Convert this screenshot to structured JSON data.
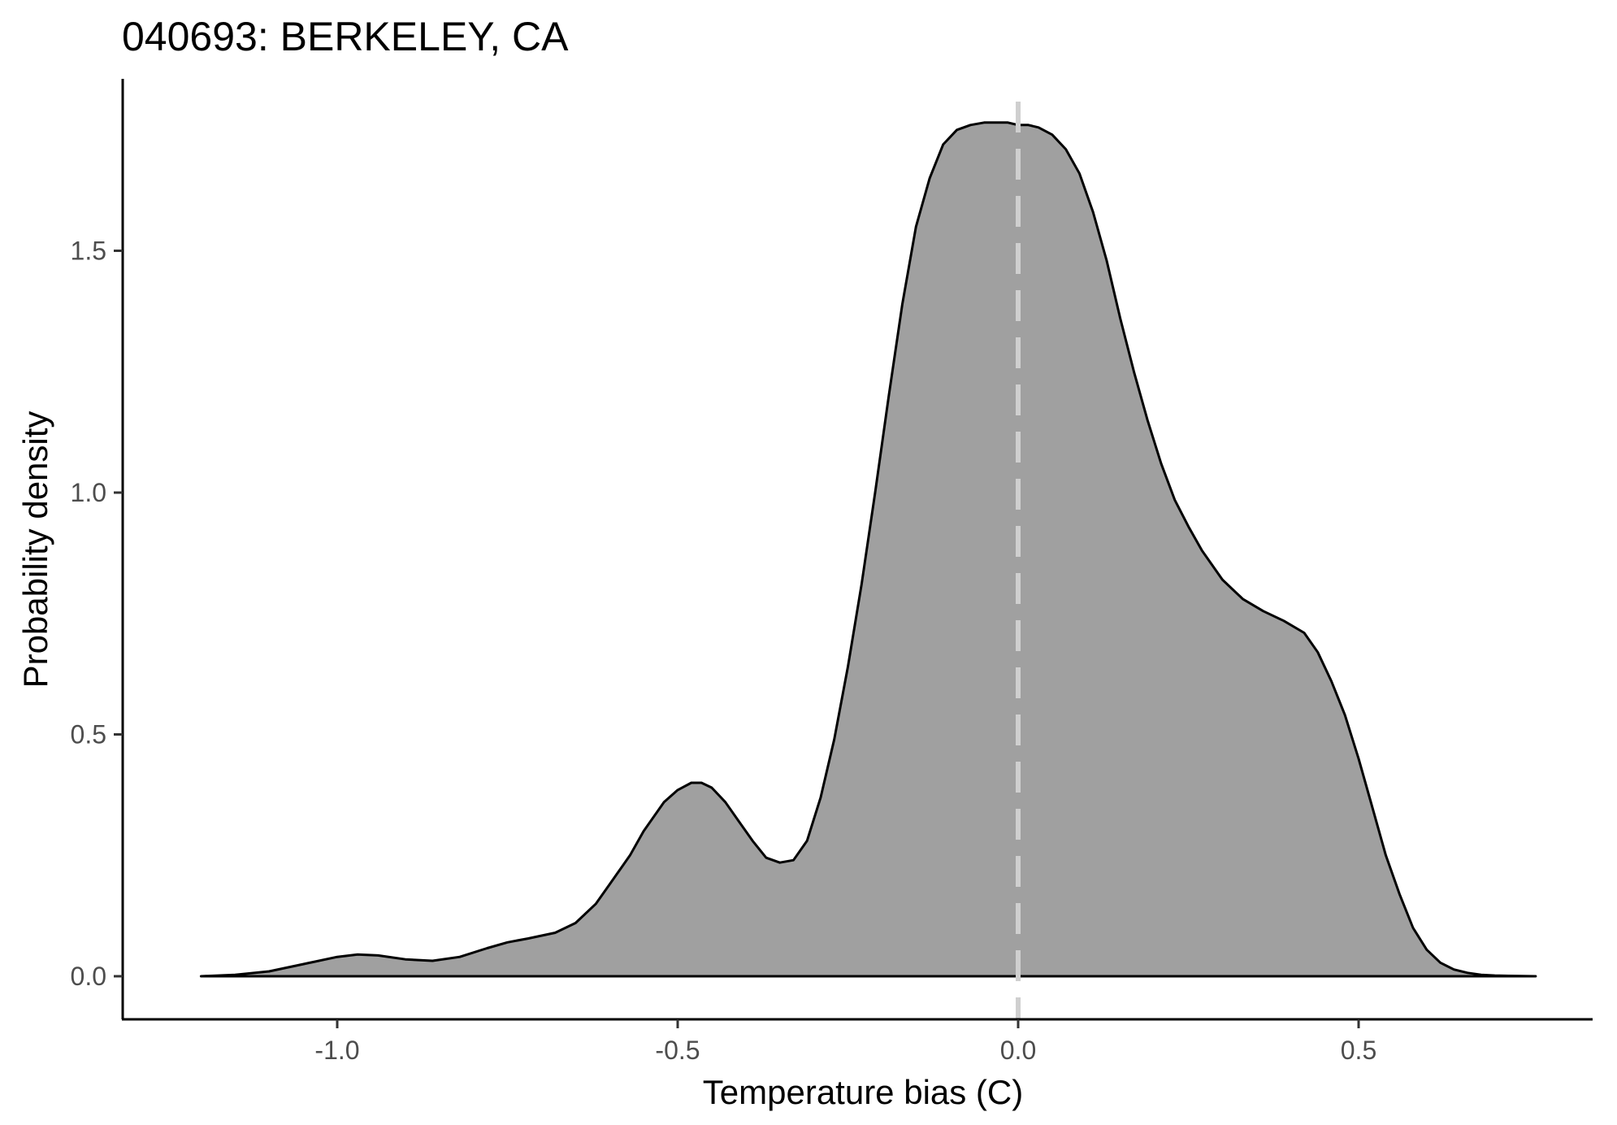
{
  "chart_data": {
    "type": "area",
    "title": "040693: BERKELEY, CA",
    "xlabel": "Temperature bias (C)",
    "ylabel": "Probability density",
    "xlim": [
      -1.3,
      0.86
    ],
    "ylim": [
      -0.09,
      1.85
    ],
    "x_ticks": [
      -1.0,
      -0.5,
      0.0,
      0.5
    ],
    "x_tick_labels": [
      "-1.0",
      "-0.5",
      "0.0",
      "0.5"
    ],
    "y_ticks": [
      0.0,
      0.5,
      1.0,
      1.5
    ],
    "y_tick_labels": [
      "0.0",
      "0.5",
      "1.0",
      "1.5"
    ],
    "reference_line": {
      "x": 0.0,
      "style": "dashed",
      "color": "#cfcfcf"
    },
    "fill_color": "#a0a0a0",
    "grid": false,
    "series": [
      {
        "x": [
          -1.2,
          -1.15,
          -1.1,
          -1.05,
          -1.0,
          -0.97,
          -0.94,
          -0.9,
          -0.86,
          -0.82,
          -0.78,
          -0.75,
          -0.72,
          -0.68,
          -0.65,
          -0.62,
          -0.6,
          -0.57,
          -0.55,
          -0.52,
          -0.5,
          -0.48,
          -0.465,
          -0.45,
          -0.43,
          -0.41,
          -0.39,
          -0.37,
          -0.35,
          -0.33,
          -0.31,
          -0.29,
          -0.27,
          -0.25,
          -0.23,
          -0.21,
          -0.19,
          -0.17,
          -0.15,
          -0.13,
          -0.11,
          -0.09,
          -0.07,
          -0.05,
          -0.03,
          -0.015,
          0.0,
          0.015,
          0.03,
          0.05,
          0.07,
          0.09,
          0.11,
          0.13,
          0.15,
          0.17,
          0.19,
          0.21,
          0.23,
          0.25,
          0.27,
          0.3,
          0.33,
          0.36,
          0.39,
          0.42,
          0.44,
          0.46,
          0.48,
          0.5,
          0.52,
          0.54,
          0.56,
          0.58,
          0.6,
          0.62,
          0.64,
          0.66,
          0.68,
          0.7,
          0.72,
          0.74,
          0.76
        ],
        "y": [
          0.0,
          0.003,
          0.01,
          0.025,
          0.04,
          0.045,
          0.043,
          0.035,
          0.032,
          0.04,
          0.058,
          0.07,
          0.078,
          0.09,
          0.11,
          0.15,
          0.19,
          0.25,
          0.3,
          0.36,
          0.385,
          0.4,
          0.4,
          0.39,
          0.36,
          0.32,
          0.28,
          0.245,
          0.235,
          0.24,
          0.28,
          0.37,
          0.49,
          0.64,
          0.81,
          1.0,
          1.2,
          1.39,
          1.55,
          1.65,
          1.72,
          1.75,
          1.76,
          1.765,
          1.765,
          1.765,
          1.76,
          1.76,
          1.755,
          1.74,
          1.71,
          1.66,
          1.58,
          1.48,
          1.36,
          1.25,
          1.15,
          1.06,
          0.985,
          0.93,
          0.88,
          0.82,
          0.78,
          0.755,
          0.735,
          0.71,
          0.67,
          0.61,
          0.54,
          0.45,
          0.35,
          0.25,
          0.17,
          0.1,
          0.055,
          0.028,
          0.014,
          0.007,
          0.003,
          0.0015,
          0.0008,
          0.0003,
          0.0
        ]
      }
    ]
  }
}
